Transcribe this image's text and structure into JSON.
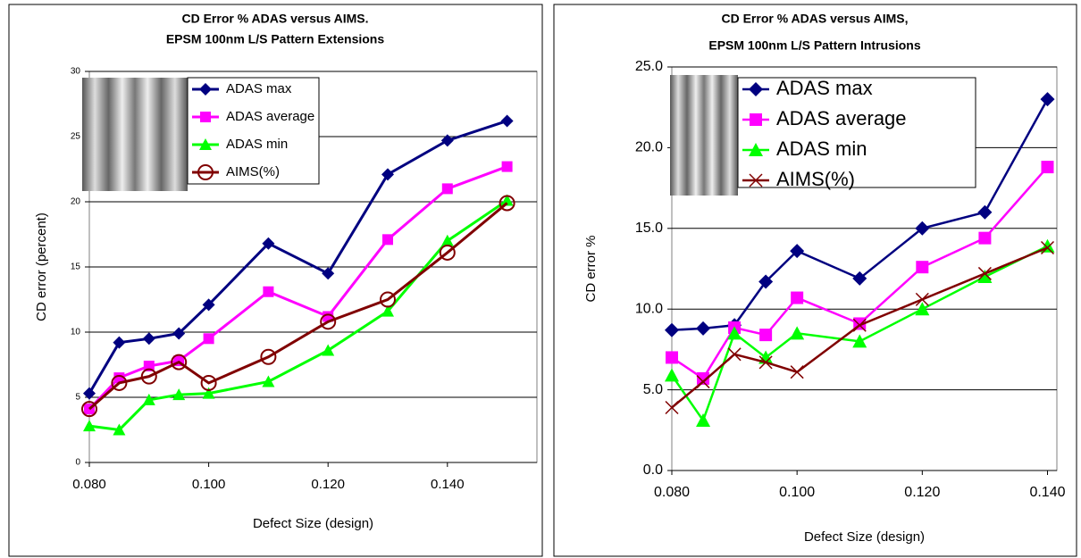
{
  "chart_data": [
    {
      "type": "line",
      "title": [
        "CD Error % ADAS versus AIMS.",
        "EPSM 100nm L/S Pattern Extensions"
      ],
      "x_label": "Defect Size (design)",
      "y_label": "CD error (percent)",
      "x": [
        0.08,
        0.085,
        0.09,
        0.095,
        0.1,
        0.11,
        0.12,
        0.13,
        0.14,
        0.15
      ],
      "xlim": [
        0.08,
        0.155
      ],
      "xticks": [
        {
          "value": 0.08,
          "label": "0.080"
        },
        {
          "value": 0.1,
          "label": "0.100"
        },
        {
          "value": 0.12,
          "label": "0.120"
        },
        {
          "value": 0.14,
          "label": "0.140"
        }
      ],
      "ylim": [
        0,
        30
      ],
      "yticks": [
        0,
        5,
        10,
        15,
        20,
        25,
        30
      ],
      "grid": true,
      "series": [
        {
          "name": "ADAS max",
          "color": "#000080",
          "marker": "diamond",
          "values": [
            5.3,
            9.2,
            9.5,
            9.9,
            12.1,
            16.8,
            14.5,
            22.1,
            24.7,
            26.2
          ]
        },
        {
          "name": "ADAS average",
          "color": "#ff00ff",
          "marker": "square",
          "values": [
            4.1,
            6.5,
            7.4,
            7.8,
            9.5,
            13.1,
            11.2,
            17.1,
            21.0,
            22.7
          ]
        },
        {
          "name": "ADAS min",
          "color": "#00ff00",
          "marker": "triangle",
          "values": [
            2.8,
            2.5,
            4.8,
            5.2,
            5.3,
            6.2,
            8.6,
            11.6,
            17.0,
            20.1
          ]
        },
        {
          "name": "AIMS(%)",
          "color": "#800000",
          "marker": "circle",
          "values": [
            4.1,
            6.1,
            6.6,
            7.7,
            6.1,
            8.1,
            10.8,
            12.5,
            16.1,
            19.9
          ]
        }
      ]
    },
    {
      "type": "line",
      "title": [
        "CD Error % ADAS versus AIMS,",
        "EPSM 100nm L/S Pattern Intrusions"
      ],
      "x_label": "Defect Size (design)",
      "y_label": "CD error %",
      "x": [
        0.08,
        0.085,
        0.09,
        0.095,
        0.1,
        0.11,
        0.12,
        0.13,
        0.14
      ],
      "xlim": [
        0.08,
        0.1415
      ],
      "xticks": [
        {
          "value": 0.08,
          "label": "0.080"
        },
        {
          "value": 0.1,
          "label": "0.100"
        },
        {
          "value": 0.12,
          "label": "0.120"
        },
        {
          "value": 0.14,
          "label": "0.140"
        }
      ],
      "ylim": [
        0,
        25
      ],
      "yticks": [
        {
          "value": 0,
          "label": "0.0"
        },
        {
          "value": 5,
          "label": "5.0"
        },
        {
          "value": 10,
          "label": "10.0"
        },
        {
          "value": 15,
          "label": "15.0"
        },
        {
          "value": 20,
          "label": "20.0"
        },
        {
          "value": 25,
          "label": "25.0"
        }
      ],
      "grid": true,
      "series": [
        {
          "name": "ADAS max",
          "color": "#000080",
          "marker": "diamond",
          "values": [
            8.7,
            8.8,
            9.0,
            11.7,
            13.6,
            11.9,
            15.0,
            16.0,
            23.0
          ]
        },
        {
          "name": "ADAS average",
          "color": "#ff00ff",
          "marker": "square",
          "values": [
            7.0,
            5.7,
            8.85,
            8.4,
            10.7,
            9.1,
            12.6,
            14.4,
            18.8
          ]
        },
        {
          "name": "ADAS min",
          "color": "#00ff00",
          "marker": "triangle",
          "values": [
            5.9,
            3.1,
            8.5,
            7.0,
            8.5,
            8.0,
            10.0,
            12.0,
            13.9
          ]
        },
        {
          "name": "AIMS(%)",
          "color": "#800000",
          "marker": "x",
          "values": [
            3.9,
            5.5,
            7.2,
            6.7,
            6.1,
            9.0,
            10.6,
            12.2,
            13.8
          ]
        }
      ]
    }
  ]
}
